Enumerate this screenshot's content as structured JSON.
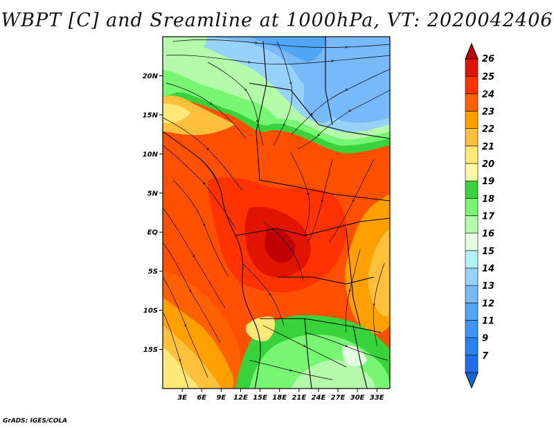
{
  "title": "WBPT [C] and Sreamline at 1000hPa, VT: 2020042406",
  "footer": "GrADS: IGES/COLA",
  "map": {
    "lon_range": [
      0,
      35
    ],
    "lat_range": [
      -20,
      25
    ],
    "y_ticks": [
      {
        "lat": 20,
        "label": "20N"
      },
      {
        "lat": 15,
        "label": "15N"
      },
      {
        "lat": 10,
        "label": "10N"
      },
      {
        "lat": 5,
        "label": "5N"
      },
      {
        "lat": 0,
        "label": "EQ"
      },
      {
        "lat": -5,
        "label": "5S"
      },
      {
        "lat": -10,
        "label": "10S"
      },
      {
        "lat": -15,
        "label": "15S"
      }
    ],
    "x_ticks": [
      {
        "lon": 3,
        "label": "3E"
      },
      {
        "lon": 6,
        "label": "6E"
      },
      {
        "lon": 9,
        "label": "9E"
      },
      {
        "lon": 12,
        "label": "12E"
      },
      {
        "lon": 15,
        "label": "15E"
      },
      {
        "lon": 18,
        "label": "18E"
      },
      {
        "lon": 21,
        "label": "21E"
      },
      {
        "lon": 24,
        "label": "24E"
      },
      {
        "lon": 27,
        "label": "27E"
      },
      {
        "lon": 30,
        "label": "30E"
      },
      {
        "lon": 33,
        "label": "33E"
      }
    ]
  },
  "colorbar": {
    "levels": [
      {
        "label": "7",
        "color": "#1e6eeb"
      },
      {
        "label": "9",
        "color": "#2882f0"
      },
      {
        "label": "11",
        "color": "#3c96f5"
      },
      {
        "label": "12",
        "color": "#50a5f5"
      },
      {
        "label": "13",
        "color": "#78b9fa"
      },
      {
        "label": "14",
        "color": "#96d2fa"
      },
      {
        "label": "15",
        "color": "#b4f0fa"
      },
      {
        "label": "16",
        "color": "#e1ffe1"
      },
      {
        "label": "17",
        "color": "#b4faaa"
      },
      {
        "label": "18",
        "color": "#78f573"
      },
      {
        "label": "19",
        "color": "#37d23c"
      },
      {
        "label": "20",
        "color": "#fffaaa"
      },
      {
        "label": "21",
        "color": "#ffe878"
      },
      {
        "label": "22",
        "color": "#ffc03c"
      },
      {
        "label": "23",
        "color": "#ffa000"
      },
      {
        "label": "24",
        "color": "#ff6000"
      },
      {
        "label": "25",
        "color": "#ff3200"
      },
      {
        "label": "26",
        "color": "#e11400"
      }
    ],
    "top_color": "#c00000",
    "bottom_color": "#1464d2"
  }
}
